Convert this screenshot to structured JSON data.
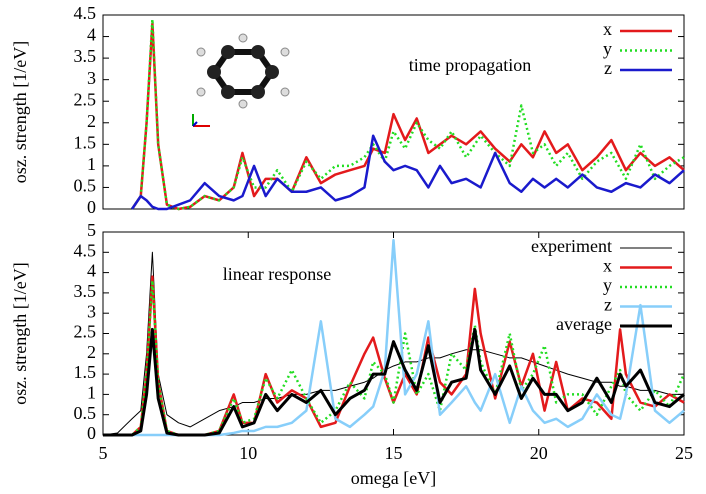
{
  "chart_data": [
    {
      "type": "line",
      "annotation": "time propagation",
      "ylabel": "osz. strength [1/eV]",
      "x": [
        6.0,
        6.3,
        6.5,
        6.7,
        6.9,
        7.2,
        7.6,
        8.0,
        8.5,
        9.0,
        9.5,
        9.8,
        10.2,
        10.6,
        11.0,
        11.5,
        12.0,
        12.5,
        13.0,
        13.5,
        14.0,
        14.3,
        14.7,
        15.0,
        15.4,
        15.8,
        16.2,
        16.6,
        17.0,
        17.5,
        18.0,
        18.5,
        19.0,
        19.4,
        19.8,
        20.2,
        20.6,
        21.0,
        21.5,
        22.0,
        22.5,
        23.0,
        23.5,
        24.0,
        24.5,
        25.0
      ],
      "xlim": [
        5,
        25
      ],
      "ylim": [
        0,
        4.5
      ],
      "yticks": [
        0,
        0.5,
        1,
        1.5,
        2,
        2.5,
        3,
        3.5,
        4,
        4.5
      ],
      "legend": "top-right",
      "series": [
        {
          "name": "x",
          "color": "#e31a1c",
          "dash": "solid",
          "linewidth": 2.5,
          "values": [
            0,
            0.3,
            2.0,
            4.3,
            1.5,
            0.1,
            0,
            0.05,
            0.3,
            0.2,
            0.5,
            1.3,
            0.3,
            0.7,
            0.7,
            0.4,
            1.2,
            0.6,
            0.8,
            0.9,
            1.0,
            1.4,
            1.3,
            2.2,
            1.6,
            2.1,
            1.3,
            1.5,
            1.7,
            1.5,
            1.8,
            1.4,
            1.1,
            1.5,
            1.2,
            1.8,
            1.3,
            1.5,
            0.9,
            1.2,
            1.6,
            0.9,
            1.3,
            1.0,
            1.2,
            0.9
          ]
        },
        {
          "name": "y",
          "color": "#22dd22",
          "dash": "dotted",
          "linewidth": 2.5,
          "values": [
            0,
            0.3,
            2.0,
            4.4,
            1.5,
            0.1,
            0,
            0.05,
            0.3,
            0.2,
            0.5,
            1.2,
            0.5,
            0.5,
            0.9,
            0.4,
            1.1,
            0.7,
            1.0,
            1.0,
            1.2,
            1.5,
            1.1,
            1.8,
            1.4,
            2.0,
            1.6,
            1.4,
            1.8,
            1.2,
            1.7,
            1.3,
            1.0,
            2.4,
            1.3,
            1.5,
            1.0,
            1.3,
            0.7,
            1.1,
            1.3,
            0.7,
            1.5,
            0.7,
            1.0,
            1.2
          ]
        },
        {
          "name": "z",
          "color": "#1a1acc",
          "dash": "solid",
          "linewidth": 2.5,
          "values": [
            0,
            0.3,
            0.2,
            0.05,
            0,
            0,
            0.1,
            0.2,
            0.6,
            0.3,
            0.2,
            0.3,
            1.0,
            0.3,
            0.7,
            0.4,
            0.4,
            0.5,
            0.2,
            0.3,
            0.5,
            1.7,
            1.1,
            0.9,
            1.0,
            0.9,
            0.5,
            1.0,
            0.6,
            0.7,
            0.5,
            1.3,
            0.6,
            0.4,
            0.7,
            0.5,
            0.7,
            0.5,
            0.8,
            0.5,
            0.4,
            0.6,
            0.5,
            0.8,
            0.6,
            0.9
          ]
        }
      ]
    },
    {
      "type": "line",
      "annotation": "linear response",
      "ylabel": "osz. strength [1/eV]",
      "xlabel": "omega [eV]",
      "x": [
        5.0,
        5.5,
        6.0,
        6.3,
        6.5,
        6.7,
        6.9,
        7.2,
        7.6,
        8.0,
        8.5,
        9.0,
        9.5,
        9.8,
        10.2,
        10.6,
        11.0,
        11.5,
        12.0,
        12.5,
        13.0,
        13.5,
        14.0,
        14.3,
        14.7,
        15.0,
        15.4,
        15.8,
        16.2,
        16.6,
        17.0,
        17.5,
        17.8,
        18.0,
        18.5,
        19.0,
        19.4,
        19.8,
        20.2,
        20.6,
        21.0,
        21.5,
        22.0,
        22.5,
        22.8,
        23.0,
        23.5,
        24.0,
        24.5,
        25.0
      ],
      "xlim": [
        5,
        25
      ],
      "xticks": [
        5,
        10,
        15,
        20,
        25
      ],
      "ylim": [
        0,
        5
      ],
      "yticks": [
        0,
        0.5,
        1,
        1.5,
        2,
        2.5,
        3,
        3.5,
        4,
        4.5,
        5
      ],
      "legend": "top-right",
      "series": [
        {
          "name": "experiment",
          "color": "#000000",
          "dash": "solid",
          "linewidth": 1,
          "values": [
            0,
            0.05,
            0.4,
            0.6,
            2.0,
            4.5,
            1.5,
            0.5,
            0.3,
            0.2,
            0.4,
            0.6,
            0.7,
            0.8,
            0.8,
            0.9,
            0.9,
            1.0,
            1.0,
            1.1,
            1.1,
            1.2,
            1.3,
            1.4,
            1.6,
            1.7,
            1.8,
            1.8,
            1.9,
            1.9,
            2.0,
            2.1,
            2.1,
            2.1,
            2.0,
            1.9,
            1.9,
            1.8,
            1.7,
            1.6,
            1.5,
            1.4,
            1.3,
            1.3,
            1.2,
            1.2,
            1.1,
            1.1,
            1.0,
            1.0
          ]
        },
        {
          "name": "x",
          "color": "#e31a1c",
          "dash": "solid",
          "linewidth": 2.5,
          "values": [
            0,
            0,
            0,
            0.2,
            1.5,
            3.9,
            1.3,
            0.1,
            0,
            0,
            0,
            0.1,
            1.0,
            0.3,
            0.3,
            1.5,
            0.8,
            1.1,
            0.9,
            0.2,
            0.3,
            1.2,
            2.0,
            2.4,
            1.4,
            0.8,
            1.5,
            1.0,
            2.4,
            1.3,
            1.0,
            1.5,
            3.6,
            2.5,
            0.9,
            2.3,
            1.2,
            2.0,
            0.6,
            1.8,
            0.6,
            0.9,
            0.8,
            0.4,
            2.6,
            1.5,
            0.8,
            0.7,
            1.0,
            0.8
          ]
        },
        {
          "name": "y",
          "color": "#22dd22",
          "dash": "dotted",
          "linewidth": 2.5,
          "values": [
            0,
            0,
            0,
            0.2,
            1.5,
            3.8,
            1.3,
            0.1,
            0,
            0,
            0,
            0.1,
            0.9,
            0.3,
            0.4,
            1.4,
            0.9,
            1.6,
            0.9,
            0.3,
            0.6,
            1.3,
            0.9,
            1.8,
            1.5,
            0.8,
            2.5,
            1.0,
            1.5,
            0.6,
            2.0,
            1.6,
            2.7,
            1.8,
            1.0,
            2.5,
            1.1,
            1.5,
            2.2,
            0.8,
            1.0,
            1.0,
            0.5,
            1.2,
            1.6,
            1.0,
            0.6,
            1.1,
            0.7,
            1.5
          ]
        },
        {
          "name": "z",
          "color": "#87cefa",
          "dash": "solid",
          "linewidth": 2.5,
          "values": [
            0,
            0,
            0,
            0,
            0,
            0,
            0,
            0,
            0,
            0,
            0,
            0,
            0.05,
            0.1,
            0.1,
            0.2,
            0.2,
            0.3,
            0.6,
            2.8,
            0.4,
            0.2,
            0.5,
            0.7,
            1.6,
            4.8,
            1.0,
            1.5,
            2.8,
            0.5,
            0.8,
            1.2,
            0.8,
            0.6,
            1.5,
            0.3,
            1.2,
            0.6,
            0.3,
            0.4,
            0.2,
            0.4,
            1.0,
            0.5,
            0.4,
            1.0,
            3.2,
            0.6,
            0.3,
            0.6
          ]
        },
        {
          "name": "average",
          "color": "#000000",
          "dash": "solid",
          "linewidth": 3,
          "values": [
            0,
            0,
            0,
            0.1,
            1.0,
            2.6,
            0.9,
            0.05,
            0,
            0,
            0,
            0.05,
            0.7,
            0.2,
            0.3,
            1.0,
            0.6,
            1.0,
            0.8,
            1.1,
            0.5,
            0.9,
            1.1,
            1.5,
            1.5,
            2.3,
            1.6,
            1.1,
            2.2,
            0.8,
            1.3,
            1.4,
            2.6,
            1.6,
            1.0,
            1.7,
            0.9,
            1.4,
            1.0,
            1.0,
            0.6,
            0.8,
            1.4,
            0.8,
            1.5,
            1.2,
            1.6,
            0.8,
            0.7,
            1.0
          ]
        }
      ]
    }
  ]
}
